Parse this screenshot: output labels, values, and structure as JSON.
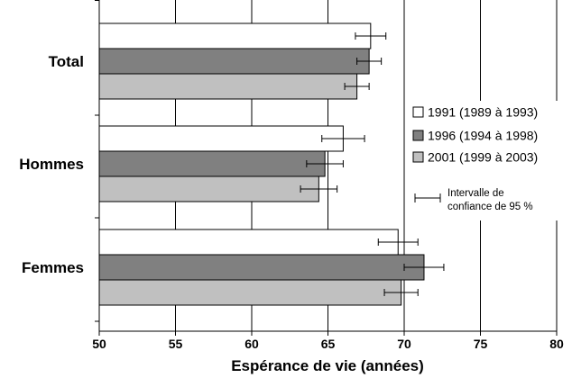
{
  "chart_data": {
    "type": "bar",
    "orientation": "horizontal",
    "categories": [
      "Total",
      "Hommes",
      "Femmes"
    ],
    "series": [
      {
        "name": "1991 (1989 à 1993)",
        "color": "#ffffff",
        "values": [
          67.8,
          66.0,
          69.6
        ],
        "ci_low": [
          66.8,
          64.6,
          68.3
        ],
        "ci_high": [
          68.8,
          67.4,
          70.9
        ]
      },
      {
        "name": "1996 (1994 à 1998)",
        "color": "#808080",
        "values": [
          67.7,
          64.8,
          71.3
        ],
        "ci_low": [
          66.9,
          63.6,
          70.0
        ],
        "ci_high": [
          68.5,
          66.0,
          72.6
        ]
      },
      {
        "name": "2001 (1999 à 2003)",
        "color": "#c0c0c0",
        "values": [
          66.9,
          64.4,
          69.8
        ],
        "ci_low": [
          66.1,
          63.2,
          68.7
        ],
        "ci_high": [
          67.7,
          65.6,
          70.9
        ]
      }
    ],
    "xlabel": "Espérance de vie (années)",
    "xlim": [
      50,
      80
    ],
    "xticks": [
      50,
      55,
      60,
      65,
      70,
      75,
      80
    ],
    "grid": "vertical",
    "legend": {
      "placement": "right",
      "ci_label_line1": "Intervalle de",
      "ci_label_line2": "confiance de 95 %"
    }
  }
}
